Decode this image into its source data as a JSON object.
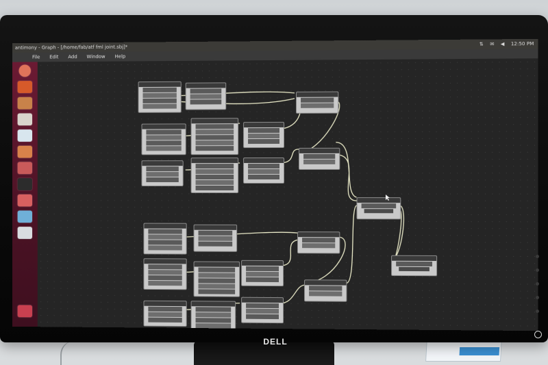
{
  "os": {
    "window_title": "antimony - Graph - [/home/fab/atf fml joint.sbj]*",
    "clock": "12:50 PM",
    "tray_icons": [
      "network-icon",
      "mail-icon",
      "volume-icon"
    ]
  },
  "menu": {
    "items": [
      "File",
      "Edit",
      "Add",
      "Window",
      "Help"
    ]
  },
  "launcher": {
    "icons": [
      "ubuntu-dash-icon",
      "firefox-icon",
      "files-icon",
      "text-editor-icon",
      "document-icon",
      "software-center-icon",
      "settings-icon",
      "terminal-icon",
      "system-settings-icon",
      "app-icon",
      "folder-icon",
      "trash-icon"
    ]
  },
  "monitor": {
    "brand": "DELL"
  },
  "colors": {
    "launcher": "#5a1428",
    "canvas": "#252525",
    "wire": "#e9e9c8",
    "node": "#c9c9c9"
  }
}
